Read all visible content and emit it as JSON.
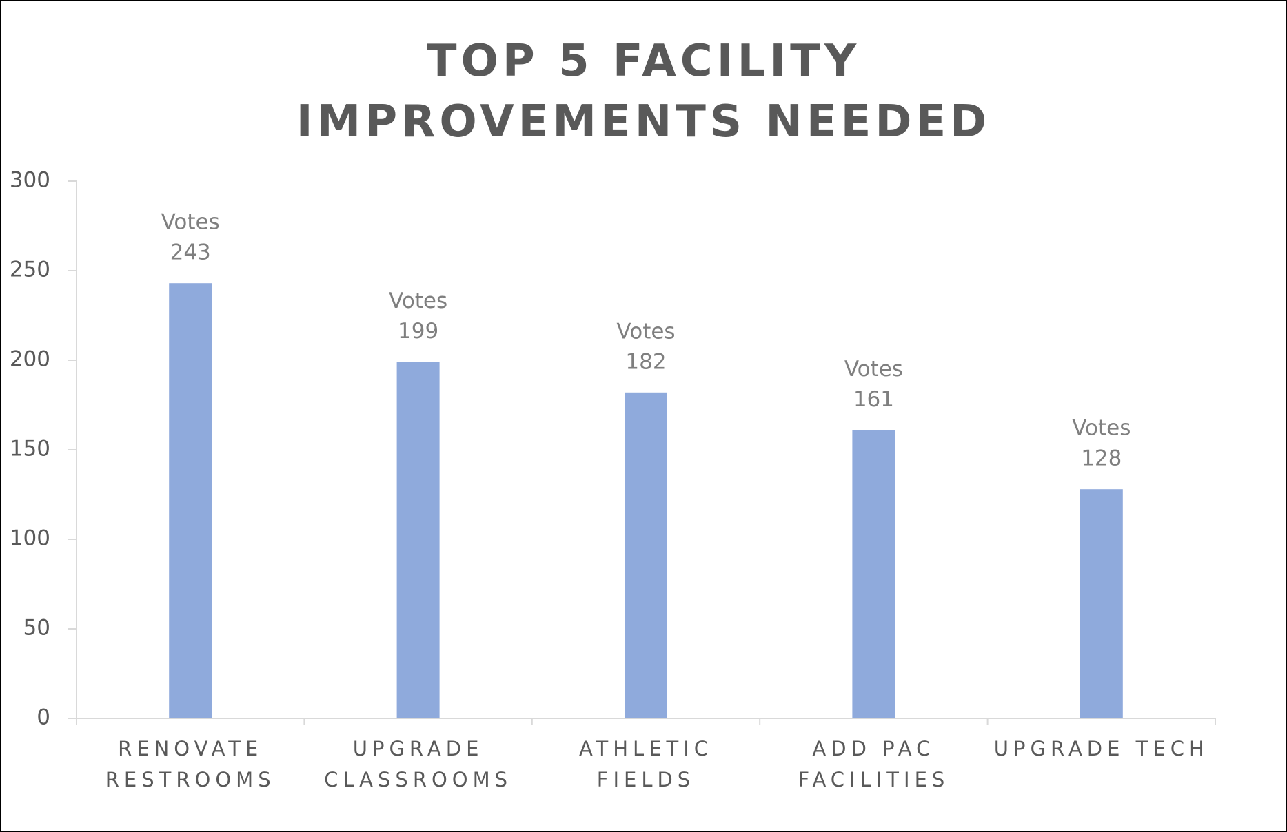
{
  "chart_data": {
    "type": "bar",
    "title": "TOP 5 FACILITY IMPROVEMENTS NEEDED",
    "categories": [
      "RENOVATE RESTROOMS",
      "UPGRADE CLASSROOMS",
      "ATHLETIC FIELDS",
      "ADD PAC FACILITIES",
      "UPGRADE TECH"
    ],
    "series": [
      {
        "name": "Votes",
        "color": "#8faadc",
        "values": [
          243,
          199,
          182,
          161,
          128
        ]
      }
    ],
    "ylim": [
      0,
      300
    ],
    "yticks": [
      0,
      50,
      100,
      150,
      200,
      250,
      300
    ],
    "grid": false,
    "data_labels": true
  }
}
